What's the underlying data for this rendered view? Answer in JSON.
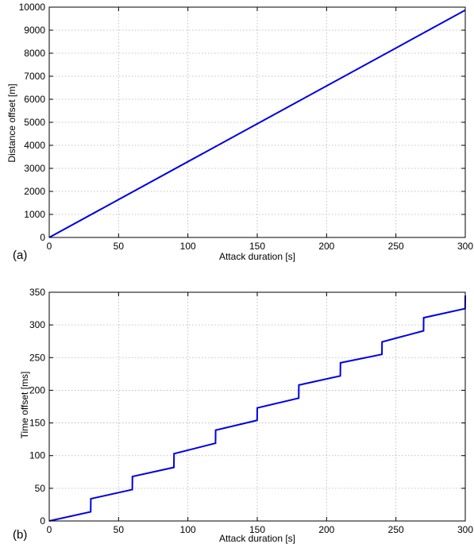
{
  "chart_data": [
    {
      "type": "line",
      "panel_label": "(a)",
      "xlabel": "Attack duration  [s]",
      "ylabel": "Distance offset  [m]",
      "xlim": [
        0,
        300
      ],
      "ylim": [
        0,
        10000
      ],
      "xticks": [
        0,
        50,
        100,
        150,
        200,
        250,
        300
      ],
      "yticks": [
        0,
        1000,
        2000,
        3000,
        4000,
        5000,
        6000,
        7000,
        8000,
        9000,
        10000
      ],
      "grid": true,
      "color": "#0000e6",
      "series": [
        {
          "x": [
            0,
            300
          ],
          "y": [
            0,
            9870
          ]
        }
      ]
    },
    {
      "type": "line",
      "panel_label": "(b)",
      "xlabel": "Attack duration  [s]",
      "ylabel": "Time offset  [ms]",
      "xlim": [
        0,
        300
      ],
      "ylim": [
        0,
        350
      ],
      "xticks": [
        0,
        50,
        100,
        150,
        200,
        250,
        300
      ],
      "yticks": [
        0,
        50,
        100,
        150,
        200,
        250,
        300,
        350
      ],
      "grid": true,
      "color": "#0000e6",
      "series": [
        {
          "x": [
            0,
            29.9,
            30,
            59.9,
            60,
            89.9,
            90,
            119.9,
            120,
            149.9,
            150,
            179.9,
            180,
            209.9,
            210,
            239.9,
            240,
            269.9,
            270,
            299.9,
            300
          ],
          "y": [
            0,
            14,
            34,
            48,
            68,
            82,
            103,
            119,
            139,
            154,
            173,
            188,
            208,
            222,
            242,
            255,
            274,
            291,
            311,
            325,
            345
          ]
        }
      ]
    }
  ]
}
